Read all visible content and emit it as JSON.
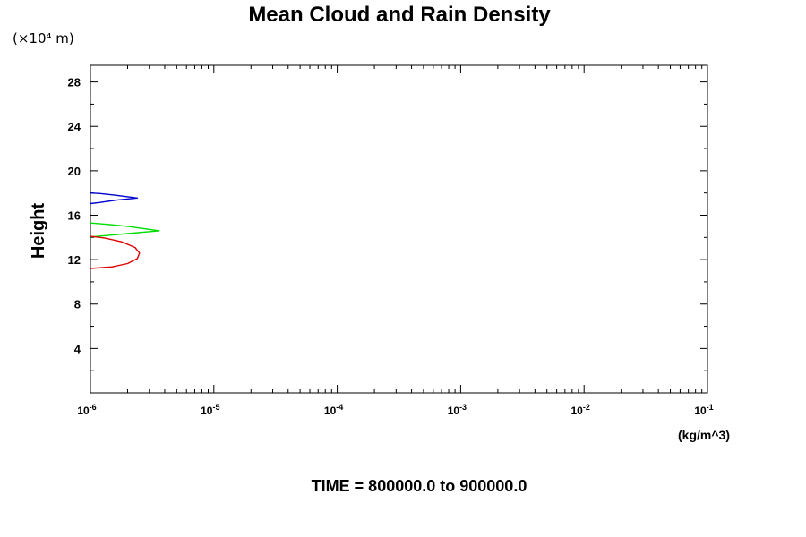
{
  "chart_data": {
    "type": "line",
    "title": "Mean Cloud and Rain Density",
    "y_multiplier": "(×10⁴ m)",
    "ylabel": "Height",
    "xlabel": "(kg/m^3)",
    "x_scale": "log",
    "xlim": [
      1e-06,
      0.1
    ],
    "ylim": [
      0,
      29.5
    ],
    "x_ticks": [
      {
        "base": "10",
        "exp": "-6"
      },
      {
        "base": "10",
        "exp": "-5"
      },
      {
        "base": "10",
        "exp": "-4"
      },
      {
        "base": "10",
        "exp": "-3"
      },
      {
        "base": "10",
        "exp": "-2"
      },
      {
        "base": "10",
        "exp": "-1"
      }
    ],
    "y_ticks": [
      "4",
      "8",
      "12",
      "16",
      "20",
      "24",
      "28"
    ],
    "grid": false,
    "legend": "none",
    "series": [
      {
        "color": "#0000cc",
        "points": [
          [
            1e-06,
            18.0
          ],
          [
            1.2e-06,
            17.95
          ],
          [
            1.6e-06,
            17.8
          ],
          [
            2.4e-06,
            17.55
          ],
          [
            1.6e-06,
            17.35
          ],
          [
            1.2e-06,
            17.15
          ],
          [
            1e-06,
            17.05
          ]
        ]
      },
      {
        "color": "#00dd00",
        "points": [
          [
            1e-06,
            15.3
          ],
          [
            1.3e-06,
            15.2
          ],
          [
            2e-06,
            15.0
          ],
          [
            3.6e-06,
            14.6
          ],
          [
            2e-06,
            14.35
          ],
          [
            1.3e-06,
            14.15
          ],
          [
            1e-06,
            14.05
          ]
        ]
      },
      {
        "color": "#dd0000",
        "points": [
          [
            1e-06,
            14.1
          ],
          [
            1.3e-06,
            13.95
          ],
          [
            1.8e-06,
            13.6
          ],
          [
            2.3e-06,
            13.1
          ],
          [
            2.5e-06,
            12.6
          ],
          [
            2.4e-06,
            12.1
          ],
          [
            2e-06,
            11.65
          ],
          [
            1.5e-06,
            11.35
          ],
          [
            1e-06,
            11.2
          ]
        ]
      }
    ]
  },
  "footer": {
    "time_label": "TIME = 800000.0 to 900000.0"
  }
}
